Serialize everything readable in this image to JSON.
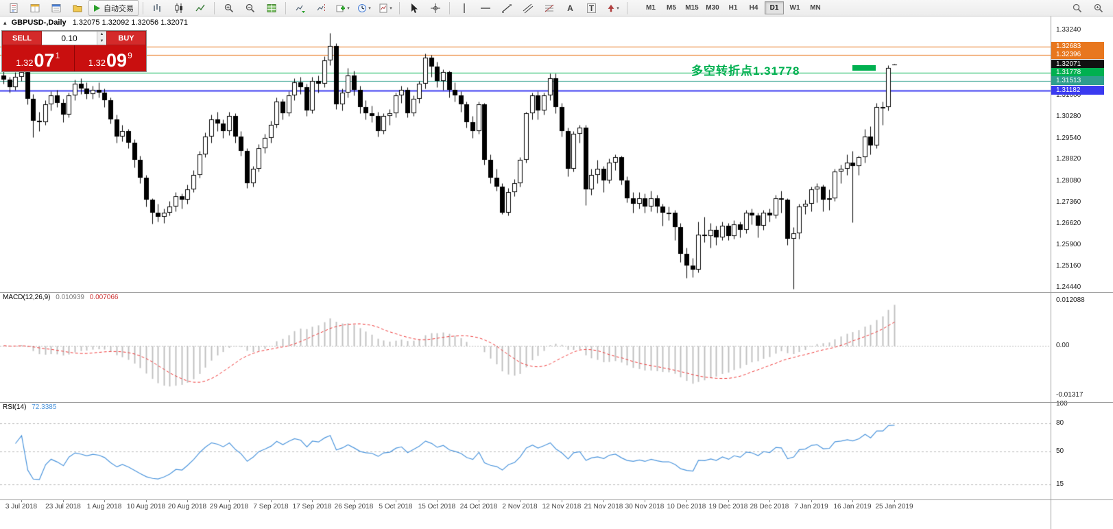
{
  "toolbar": {
    "autotrading_label": "自动交易",
    "timeframes": [
      "M1",
      "M5",
      "M15",
      "M30",
      "H1",
      "H4",
      "D1",
      "W1",
      "MN"
    ],
    "active_timeframe": "D1",
    "icon_names": [
      "new-order-icon",
      "market-watch-icon",
      "data-window-icon",
      "navigator-icon",
      "autotrading-play-icon",
      "bar-chart-icon",
      "candlestick-chart-icon",
      "line-chart-icon",
      "zoom-in-icon",
      "zoom-out-icon",
      "tile-windows-icon",
      "auto-scroll-icon",
      "chart-shift-icon",
      "new-chart-icon",
      "period-clock-icon",
      "templates-icon",
      "cursor-icon",
      "crosshair-icon",
      "vertical-line-icon",
      "horizontal-line-icon",
      "trendline-icon",
      "channel-icon",
      "fibonacci-icon",
      "text-icon",
      "text-label-icon",
      "arrows-icon",
      "search-icon",
      "search-plus-icon",
      "one-click-collapse-icon",
      "volume-up-icon",
      "volume-down-icon"
    ]
  },
  "chart": {
    "symbol_label": "GBPUSD-,Daily",
    "ohlc_text": "1.32075 1.32092 1.32056 1.32071",
    "annotation": {
      "text": "多空转折点1.31778",
      "color": "#00b050"
    },
    "trade_panel": {
      "sell_label": "SELL",
      "buy_label": "BUY",
      "volume": "0.10",
      "sell_small": "1.32",
      "sell_big": "07",
      "sell_sup": "1",
      "buy_small": "1.32",
      "buy_big": "09",
      "buy_sup": "9"
    }
  },
  "chart_data": {
    "type": "candlestick",
    "symbol": "GBPUSD",
    "timeframe": "Daily",
    "title": "GBPUSD-,Daily",
    "price_range": [
      1.24276,
      1.33709
    ],
    "price_axis_ticks": [
      "1.33240",
      "1.31000",
      "1.30280",
      "1.29540",
      "1.28820",
      "1.28080",
      "1.27360",
      "1.26620",
      "1.25900",
      "1.25160",
      "1.24440"
    ],
    "levels": [
      {
        "price": 1.32683,
        "label": "1.32683",
        "color": "#e8771e",
        "line": true,
        "width": 1
      },
      {
        "price": 1.32396,
        "label": "1.32396",
        "color": "#e8771e",
        "line": true,
        "width": 1
      },
      {
        "price": 1.32071,
        "label": "1.32071",
        "color": "#111111",
        "line": false,
        "width": 1
      },
      {
        "price": 1.31778,
        "label": "1.31778",
        "color": "#00b050",
        "line": true,
        "width": 1
      },
      {
        "price": 1.31513,
        "label": "1.31513",
        "color": "#2e9e8e",
        "line": true,
        "width": 1
      },
      {
        "price": 1.31182,
        "label": "1.31182",
        "color": "#3a3af0",
        "line": true,
        "width": 2
      }
    ],
    "colors": {
      "bull": "#ffffff",
      "bear": "#000000",
      "outline": "#000000",
      "macd_hist": "#c0c0c0",
      "macd_signal": "#ee3333",
      "rsi_line": "#4a94dc",
      "grid_dash": "#b8b8b8"
    },
    "x_label_start": 3,
    "x_label_step": 7,
    "x_labels": [
      "3 Jul 2018",
      "23 Jul 2018",
      "1 Aug 2018",
      "10 Aug 2018",
      "20 Aug 2018",
      "29 Aug 2018",
      "7 Sep 2018",
      "17 Sep 2018",
      "26 Sep 2018",
      "5 Oct 2018",
      "15 Oct 2018",
      "24 Oct 2018",
      "2 Nov 2018",
      "12 Nov 2018",
      "21 Nov 2018",
      "30 Nov 2018",
      "10 Dec 2018",
      "19 Dec 2018",
      "28 Dec 2018",
      "7 Jan 2019",
      "16 Jan 2019",
      "25 Jan 2019"
    ],
    "macd": {
      "label": "MACD(12,26,9)",
      "value_main": "0.010939",
      "value_signal": "0.007066",
      "params": [
        12,
        26,
        9
      ],
      "range": [
        -0.015,
        0.0142
      ],
      "axis_ticks": [
        {
          "v": 0.012088,
          "label": "0.012088"
        },
        {
          "v": 0,
          "label": "0.00"
        },
        {
          "v": -0.01317,
          "label": "-0.01317"
        }
      ]
    },
    "rsi": {
      "label": "RSI(14)",
      "value": "72.3385",
      "period": 14,
      "range": [
        0,
        100
      ],
      "levels": [
        80,
        50,
        15
      ],
      "axis_ticks": [
        {
          "v": 100,
          "label": "100"
        },
        {
          "v": 80,
          "label": "80"
        },
        {
          "v": 50,
          "label": "50"
        },
        {
          "v": 15,
          "label": "15"
        }
      ]
    },
    "candles": [
      [
        1.317,
        1.3185,
        1.314,
        1.3155
      ],
      [
        1.3155,
        1.3165,
        1.311,
        1.313
      ],
      [
        1.313,
        1.318,
        1.312,
        1.3165
      ],
      [
        1.3165,
        1.3195,
        1.315,
        1.318
      ],
      [
        1.318,
        1.3185,
        1.307,
        1.309
      ],
      [
        1.309,
        1.3105,
        1.2957,
        1.3015
      ],
      [
        1.3015,
        1.3045,
        1.298,
        1.301
      ],
      [
        1.301,
        1.3085,
        1.3,
        1.307
      ],
      [
        1.307,
        1.3115,
        1.305,
        1.31
      ],
      [
        1.31,
        1.312,
        1.306,
        1.3075
      ],
      [
        1.3075,
        1.309,
        1.301,
        1.3035
      ],
      [
        1.3035,
        1.311,
        1.3025,
        1.31
      ],
      [
        1.31,
        1.3155,
        1.3085,
        1.314
      ],
      [
        1.314,
        1.316,
        1.3105,
        1.3125
      ],
      [
        1.3125,
        1.3145,
        1.309,
        1.3105
      ],
      [
        1.3105,
        1.3135,
        1.309,
        1.312
      ],
      [
        1.312,
        1.3145,
        1.3095,
        1.311
      ],
      [
        1.311,
        1.3125,
        1.306,
        1.3085
      ],
      [
        1.3085,
        1.3095,
        1.3005,
        1.302
      ],
      [
        1.302,
        1.3035,
        1.294,
        1.296
      ],
      [
        1.296,
        1.3,
        1.2945,
        1.298
      ],
      [
        1.298,
        1.2985,
        1.292,
        1.294
      ],
      [
        1.294,
        1.295,
        1.2855,
        1.288
      ],
      [
        1.288,
        1.2895,
        1.28,
        1.282
      ],
      [
        1.282,
        1.283,
        1.272,
        1.2745
      ],
      [
        1.2745,
        1.275,
        1.2662,
        1.27
      ],
      [
        1.27,
        1.273,
        1.267,
        1.2685
      ],
      [
        1.2685,
        1.2715,
        1.2665,
        1.27
      ],
      [
        1.27,
        1.274,
        1.269,
        1.272
      ],
      [
        1.272,
        1.277,
        1.2705,
        1.2755
      ],
      [
        1.2755,
        1.2765,
        1.2715,
        1.2745
      ],
      [
        1.2745,
        1.2795,
        1.273,
        1.278
      ],
      [
        1.278,
        1.2845,
        1.277,
        1.283
      ],
      [
        1.283,
        1.291,
        1.282,
        1.29
      ],
      [
        1.29,
        1.2975,
        1.289,
        1.296
      ],
      [
        1.296,
        1.3035,
        1.294,
        1.302
      ],
      [
        1.302,
        1.3045,
        1.298,
        1.3005
      ],
      [
        1.3005,
        1.302,
        1.2955,
        1.298
      ],
      [
        1.298,
        1.3045,
        1.2965,
        1.303
      ],
      [
        1.303,
        1.304,
        1.294,
        1.296
      ],
      [
        1.296,
        1.298,
        1.2895,
        1.291
      ],
      [
        1.291,
        1.292,
        1.2785,
        1.28
      ],
      [
        1.28,
        1.286,
        1.279,
        1.285
      ],
      [
        1.285,
        1.2935,
        1.284,
        1.292
      ],
      [
        1.292,
        1.297,
        1.2905,
        1.2955
      ],
      [
        1.2955,
        1.3015,
        1.294,
        1.3
      ],
      [
        1.3,
        1.3095,
        1.299,
        1.308
      ],
      [
        1.308,
        1.309,
        1.302,
        1.304
      ],
      [
        1.304,
        1.3115,
        1.303,
        1.31
      ],
      [
        1.31,
        1.316,
        1.3085,
        1.3145
      ],
      [
        1.3145,
        1.3165,
        1.3105,
        1.313
      ],
      [
        1.313,
        1.314,
        1.303,
        1.305
      ],
      [
        1.305,
        1.3165,
        1.304,
        1.315
      ],
      [
        1.315,
        1.317,
        1.311,
        1.314
      ],
      [
        1.314,
        1.3235,
        1.313,
        1.322
      ],
      [
        1.322,
        1.3315,
        1.3205,
        1.327
      ],
      [
        1.327,
        1.328,
        1.3055,
        1.307
      ],
      [
        1.307,
        1.3125,
        1.305,
        1.311
      ],
      [
        1.311,
        1.3195,
        1.3095,
        1.317
      ],
      [
        1.317,
        1.3185,
        1.31,
        1.312
      ],
      [
        1.312,
        1.3135,
        1.304,
        1.306
      ],
      [
        1.306,
        1.3085,
        1.302,
        1.304
      ],
      [
        1.304,
        1.3065,
        1.301,
        1.303
      ],
      [
        1.303,
        1.3045,
        1.296,
        1.298
      ],
      [
        1.298,
        1.304,
        1.297,
        1.303
      ],
      [
        1.303,
        1.3055,
        1.3,
        1.304
      ],
      [
        1.304,
        1.311,
        1.3025,
        1.31
      ],
      [
        1.31,
        1.3135,
        1.3075,
        1.312
      ],
      [
        1.312,
        1.313,
        1.3025,
        1.304
      ],
      [
        1.304,
        1.31,
        1.303,
        1.309
      ],
      [
        1.309,
        1.315,
        1.3075,
        1.314
      ],
      [
        1.314,
        1.3245,
        1.3125,
        1.323
      ],
      [
        1.323,
        1.324,
        1.3165,
        1.32
      ],
      [
        1.32,
        1.3215,
        1.313,
        1.315
      ],
      [
        1.315,
        1.319,
        1.312,
        1.318
      ],
      [
        1.318,
        1.3185,
        1.3095,
        1.312
      ],
      [
        1.312,
        1.3145,
        1.308,
        1.31
      ],
      [
        1.31,
        1.3115,
        1.3045,
        1.307
      ],
      [
        1.307,
        1.308,
        1.299,
        1.301
      ],
      [
        1.301,
        1.303,
        1.2955,
        1.298
      ],
      [
        1.298,
        1.308,
        1.297,
        1.307
      ],
      [
        1.307,
        1.3075,
        1.2865,
        1.288
      ],
      [
        1.288,
        1.29,
        1.28,
        1.282
      ],
      [
        1.282,
        1.285,
        1.2775,
        1.279
      ],
      [
        1.279,
        1.28,
        1.2696,
        1.27
      ],
      [
        1.27,
        1.2785,
        1.269,
        1.277
      ],
      [
        1.277,
        1.2815,
        1.2755,
        1.28
      ],
      [
        1.28,
        1.289,
        1.279,
        1.288
      ],
      [
        1.288,
        1.3045,
        1.287,
        1.304
      ],
      [
        1.304,
        1.311,
        1.302,
        1.31
      ],
      [
        1.31,
        1.3115,
        1.302,
        1.305
      ],
      [
        1.305,
        1.311,
        1.3035,
        1.31
      ],
      [
        1.31,
        1.3175,
        1.3085,
        1.316
      ],
      [
        1.316,
        1.3175,
        1.304,
        1.306
      ],
      [
        1.306,
        1.3075,
        1.296,
        1.298
      ],
      [
        1.298,
        1.299,
        1.2825,
        1.285
      ],
      [
        1.285,
        1.298,
        1.284,
        1.297
      ],
      [
        1.297,
        1.3,
        1.294,
        1.299
      ],
      [
        1.299,
        1.3,
        1.2725,
        1.278
      ],
      [
        1.278,
        1.285,
        1.276,
        1.283
      ],
      [
        1.283,
        1.288,
        1.28,
        1.285
      ],
      [
        1.285,
        1.286,
        1.277,
        1.281
      ],
      [
        1.281,
        1.2885,
        1.28,
        1.287
      ],
      [
        1.287,
        1.29,
        1.2845,
        1.289
      ],
      [
        1.289,
        1.2895,
        1.2795,
        1.281
      ],
      [
        1.281,
        1.2825,
        1.2735,
        1.275
      ],
      [
        1.275,
        1.277,
        1.27,
        1.273
      ],
      [
        1.273,
        1.277,
        1.2715,
        1.275
      ],
      [
        1.275,
        1.2765,
        1.27,
        1.272
      ],
      [
        1.272,
        1.2775,
        1.2705,
        1.275
      ],
      [
        1.275,
        1.276,
        1.27,
        1.272
      ],
      [
        1.272,
        1.273,
        1.2655,
        1.27
      ],
      [
        1.27,
        1.272,
        1.2675,
        1.27
      ],
      [
        1.27,
        1.271,
        1.2605,
        1.265
      ],
      [
        1.265,
        1.2665,
        1.253,
        1.256
      ],
      [
        1.256,
        1.258,
        1.2477,
        1.252
      ],
      [
        1.252,
        1.2545,
        1.248,
        1.2505
      ],
      [
        1.2505,
        1.267,
        1.2495,
        1.2625
      ],
      [
        1.2625,
        1.2685,
        1.26,
        1.262
      ],
      [
        1.262,
        1.2665,
        1.258,
        1.264
      ],
      [
        1.264,
        1.2655,
        1.259,
        1.2615
      ],
      [
        1.2615,
        1.267,
        1.2605,
        1.2655
      ],
      [
        1.2655,
        1.2665,
        1.2605,
        1.262
      ],
      [
        1.262,
        1.2675,
        1.261,
        1.266
      ],
      [
        1.266,
        1.267,
        1.2615,
        1.264
      ],
      [
        1.264,
        1.271,
        1.263,
        1.27
      ],
      [
        1.27,
        1.2715,
        1.266,
        1.269
      ],
      [
        1.269,
        1.27,
        1.2615,
        1.2655
      ],
      [
        1.2655,
        1.271,
        1.264,
        1.27
      ],
      [
        1.27,
        1.2715,
        1.267,
        1.269
      ],
      [
        1.269,
        1.276,
        1.268,
        1.275
      ],
      [
        1.275,
        1.2775,
        1.27,
        1.2745
      ],
      [
        1.2745,
        1.275,
        1.259,
        1.261
      ],
      [
        1.261,
        1.265,
        1.244,
        1.263
      ],
      [
        1.263,
        1.273,
        1.261,
        1.272
      ],
      [
        1.272,
        1.2745,
        1.2695,
        1.273
      ],
      [
        1.273,
        1.279,
        1.2705,
        1.278
      ],
      [
        1.278,
        1.28,
        1.2735,
        1.279
      ],
      [
        1.279,
        1.2795,
        1.2705,
        1.2745
      ],
      [
        1.2745,
        1.278,
        1.271,
        1.275
      ],
      [
        1.275,
        1.285,
        1.274,
        1.284
      ],
      [
        1.284,
        1.2865,
        1.28,
        1.285
      ],
      [
        1.285,
        1.29,
        1.283,
        1.287
      ],
      [
        1.287,
        1.291,
        1.2668,
        1.286
      ],
      [
        1.286,
        1.2895,
        1.283,
        1.289
      ],
      [
        1.289,
        1.2985,
        1.287,
        1.296
      ],
      [
        1.296,
        1.2995,
        1.29,
        1.293
      ],
      [
        1.293,
        1.3075,
        1.292,
        1.306
      ],
      [
        1.306,
        1.308,
        1.3,
        1.306
      ],
      [
        1.306,
        1.3205,
        1.305,
        1.3195
      ],
      [
        1.32075,
        1.32092,
        1.32056,
        1.32071
      ]
    ]
  }
}
